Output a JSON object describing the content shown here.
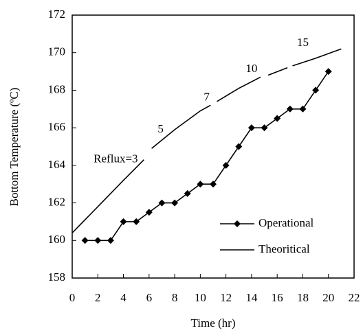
{
  "chart_data": {
    "type": "line",
    "xlabel": "Time (hr)",
    "ylabel": "Bottom Temperature (ºC)",
    "xlim": [
      0,
      22
    ],
    "xticks": [
      0,
      2,
      4,
      6,
      8,
      10,
      12,
      14,
      16,
      18,
      20,
      22
    ],
    "ylim": [
      158,
      172
    ],
    "yticks": [
      158,
      160,
      162,
      164,
      166,
      168,
      170,
      172
    ],
    "legend": "lower right",
    "series": [
      {
        "name": "Operational",
        "color": "#000000",
        "marker": "diamond",
        "x": [
          1,
          2,
          3,
          4,
          5,
          6,
          7,
          8,
          9,
          10,
          11,
          12,
          13,
          14,
          15,
          16,
          17,
          18,
          19,
          20
        ],
        "values": [
          160,
          160,
          160,
          161,
          161,
          161.5,
          162,
          162,
          162.5,
          163,
          163,
          164,
          165,
          166,
          166,
          166.5,
          167,
          167,
          168,
          169
        ]
      },
      {
        "name": "Theoritical",
        "color": "#000000",
        "marker": "none",
        "x": [
          0,
          2,
          4,
          5.6,
          5.9,
          6.2,
          8,
          10,
          10.8,
          11.0,
          11.3,
          13,
          14.7,
          15.0,
          15.3,
          16.8,
          17.0,
          17.2,
          19,
          21
        ],
        "values": [
          160.4,
          161.8,
          163.2,
          164.3,
          null,
          164.9,
          165.9,
          166.9,
          167.2,
          null,
          167.4,
          168.1,
          168.7,
          null,
          168.8,
          169.2,
          null,
          169.3,
          169.7,
          170.2
        ]
      }
    ],
    "annotations": [
      {
        "text": "Reflux=3",
        "x": 3.4,
        "y": 164.3
      },
      {
        "text": "5",
        "x": 6.9,
        "y": 165.9
      },
      {
        "text": "7",
        "x": 10.5,
        "y": 167.6
      },
      {
        "text": "10",
        "x": 14.0,
        "y": 169.1
      },
      {
        "text": "15",
        "x": 18.0,
        "y": 170.5
      }
    ]
  }
}
